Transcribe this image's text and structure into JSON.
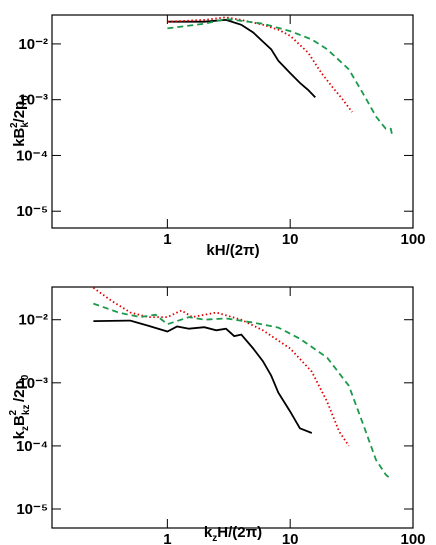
{
  "chart_data": [
    {
      "type": "line",
      "log_x": true,
      "log_y": true,
      "x_label": [
        "kH/(2π)"
      ],
      "y_label": [
        "kB",
        "k",
        "2",
        "/2p",
        "0"
      ],
      "xlim": [
        0.115,
        100
      ],
      "ylim": [
        5e-06,
        0.033
      ],
      "xticks": [
        1,
        10,
        100
      ],
      "yticks": [
        {
          "value": 1e-05,
          "label": "10⁻⁵"
        },
        {
          "value": 0.0001,
          "label": "10⁻⁴"
        },
        {
          "value": 0.001,
          "label": "10⁻³"
        },
        {
          "value": 0.01,
          "label": "10⁻²"
        }
      ],
      "series": [
        {
          "color": "#000000",
          "dash": "solid",
          "x": [
            1,
            2,
            3,
            4,
            5,
            6,
            7,
            8,
            10,
            12,
            14,
            16
          ],
          "values": [
            0.025,
            0.025,
            0.027,
            0.022,
            0.016,
            0.011,
            0.008,
            0.005,
            0.003,
            0.002,
            0.0015,
            0.0011
          ]
        },
        {
          "color": "#e00000",
          "dash": "dotted",
          "x": [
            1,
            2,
            3,
            4,
            6,
            8,
            10,
            14,
            18,
            22,
            26,
            32
          ],
          "values": [
            0.025,
            0.027,
            0.03,
            0.027,
            0.022,
            0.018,
            0.014,
            0.007,
            0.003,
            0.0017,
            0.0011,
            0.0006
          ]
        },
        {
          "color": "#1a9a4a",
          "dash": "dashed",
          "x": [
            1,
            2,
            3,
            4,
            6,
            10,
            15,
            20,
            30,
            40,
            50,
            60,
            66,
            68
          ],
          "values": [
            0.019,
            0.023,
            0.028,
            0.026,
            0.023,
            0.017,
            0.012,
            0.008,
            0.0035,
            0.0012,
            0.0005,
            0.0003,
            0.0003,
            0.00022
          ]
        }
      ]
    },
    {
      "type": "line",
      "log_x": true,
      "log_y": true,
      "x_label": [
        "k",
        "z",
        "H/(2π)"
      ],
      "y_label": [
        "k",
        "z",
        "B",
        "kz",
        "2",
        "/2p",
        "0"
      ],
      "xlim": [
        0.115,
        100
      ],
      "ylim": [
        5e-06,
        0.033
      ],
      "xticks": [
        1,
        10,
        100
      ],
      "yticks": [
        {
          "value": 1e-05,
          "label": "10⁻⁵"
        },
        {
          "value": 0.0001,
          "label": "10⁻⁴"
        },
        {
          "value": 0.001,
          "label": "10⁻³"
        },
        {
          "value": 0.01,
          "label": "10⁻²"
        }
      ],
      "series": [
        {
          "color": "#000000",
          "dash": "solid",
          "x": [
            0.25,
            0.5,
            0.7,
            1,
            1.2,
            1.5,
            2,
            2.5,
            3,
            3.5,
            4,
            5,
            6,
            7,
            8,
            10,
            12,
            15
          ],
          "values": [
            0.0095,
            0.0097,
            0.008,
            0.0065,
            0.0078,
            0.0072,
            0.0076,
            0.0068,
            0.0072,
            0.0055,
            0.0058,
            0.0035,
            0.0022,
            0.0013,
            0.0007,
            0.00035,
            0.00019,
            0.00016
          ]
        },
        {
          "color": "#e00000",
          "dash": "dotted",
          "x": [
            0.25,
            0.35,
            0.5,
            0.7,
            1,
            1.3,
            1.6,
            2.5,
            4,
            6,
            10,
            15,
            20,
            25,
            30
          ],
          "values": [
            0.032,
            0.02,
            0.013,
            0.011,
            0.011,
            0.014,
            0.011,
            0.013,
            0.01,
            0.0068,
            0.0035,
            0.0015,
            0.0005,
            0.00017,
            0.0001
          ]
        },
        {
          "color": "#1a9a4a",
          "dash": "dashed",
          "x": [
            0.25,
            0.4,
            0.6,
            0.8,
            1,
            1.5,
            2,
            3,
            5,
            8,
            12,
            20,
            30,
            40,
            50,
            60,
            66
          ],
          "values": [
            0.018,
            0.013,
            0.011,
            0.012,
            0.0085,
            0.011,
            0.01,
            0.0105,
            0.009,
            0.0075,
            0.005,
            0.0025,
            0.0009,
            0.0002,
            6e-05,
            3.5e-05,
            3e-05
          ]
        }
      ]
    }
  ]
}
